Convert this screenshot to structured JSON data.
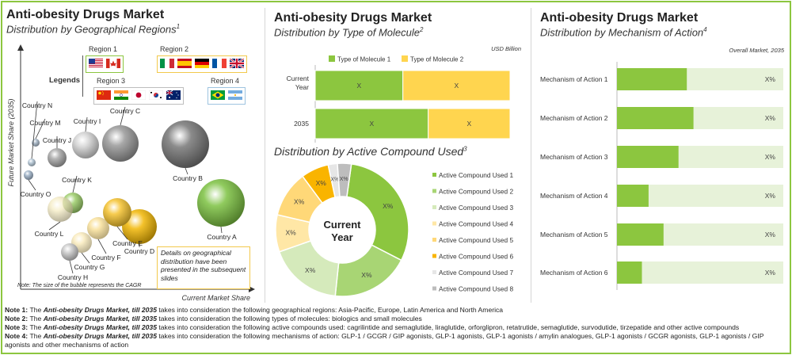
{
  "panel1": {
    "title": "Anti-obesity Drugs Market",
    "subtitle": "Distribution by Geographical Regions",
    "subtitle_sup": "1",
    "legend_label": "Legends",
    "regions": [
      {
        "label": "Region 1",
        "flags": [
          "us",
          "ca"
        ]
      },
      {
        "label": "Region 2",
        "flags": [
          "it",
          "es",
          "de",
          "fr",
          "uk"
        ]
      },
      {
        "label": "Region 3",
        "flags": [
          "cn",
          "in",
          "jp",
          "kr",
          "au"
        ]
      },
      {
        "label": "Region 4",
        "flags": [
          "br",
          "ar"
        ]
      }
    ],
    "details_note": "Details on geographical distribution have been presented in the subsequent slides",
    "bubble_note": "Note: The size of the bubble represents the CAGR"
  },
  "panel2": {
    "title": "Anti-obesity Drugs Market",
    "subtitle": "Distribution by Type of Molecule",
    "subtitle_sup": "2",
    "unit": "USD Billion"
  },
  "panel3": {
    "subtitle": "Distribution by Active Compound Used",
    "subtitle_sup": "3",
    "center_label": [
      "Current",
      "Year"
    ]
  },
  "panel4": {
    "title": "Anti-obesity Drugs Market",
    "subtitle": "Distribution by Mechanism of Action",
    "subtitle_sup": "4",
    "caption": "Overall Market, 2035"
  },
  "chart_data": [
    {
      "type": "scatter",
      "xlabel": "Current Market Share",
      "ylabel": "Future Market Share  (2035)",
      "points": [
        {
          "name": "Country A",
          "color": "#7cc242",
          "region": 1
        },
        {
          "name": "Country B",
          "color": "#777777",
          "region": 1
        },
        {
          "name": "Country C",
          "color": "#999999",
          "region": 2
        },
        {
          "name": "Country D",
          "color": "#f2b705",
          "region": 2
        },
        {
          "name": "Country E",
          "color": "#f5c330",
          "region": 2
        },
        {
          "name": "Country F",
          "color": "#f7d77a",
          "region": 2
        },
        {
          "name": "Country G",
          "color": "#f8e5a8",
          "region": 2
        },
        {
          "name": "Country H",
          "color": "#c8c8c8",
          "region": 2
        },
        {
          "name": "Country I",
          "color": "#d4d4d4",
          "region": 3
        },
        {
          "name": "Country J",
          "color": "#a8a8a8",
          "region": 3
        },
        {
          "name": "Country K",
          "color": "#9ccc6a",
          "region": 3
        },
        {
          "name": "Country L",
          "color": "#f3e9b8",
          "region": 3
        },
        {
          "name": "Country M",
          "color": "#a6b6c6",
          "region": 3
        },
        {
          "name": "Country N",
          "color": "#b4c6d6",
          "region": 4
        },
        {
          "name": "Country O",
          "color": "#9fb3c8",
          "region": 4
        }
      ]
    },
    {
      "type": "bar",
      "orientation": "horizontal",
      "stacked": true,
      "normalized": true,
      "categories": [
        "Current Year",
        "2035"
      ],
      "series": [
        {
          "name": "Type of Molecule 1",
          "color": "#8cc63f",
          "values": [
            0.45,
            0.58
          ],
          "labels": [
            "X",
            "X"
          ]
        },
        {
          "name": "Type of Molecule 2",
          "color": "#ffd54f",
          "values": [
            0.55,
            0.42
          ],
          "labels": [
            "X",
            "X"
          ]
        }
      ],
      "legend": "top"
    },
    {
      "type": "pie",
      "donut": true,
      "center_text": "Current Year",
      "legend": "right",
      "slices": [
        {
          "name": "Active Compound Used 1",
          "value": 0.27,
          "label": "X%",
          "color": "#8cc63f"
        },
        {
          "name": "Active Compound Used 2",
          "value": 0.17,
          "label": "X%",
          "color": "#a8d574"
        },
        {
          "name": "Active Compound Used 3",
          "value": 0.16,
          "label": "X%",
          "color": "#d5eabb"
        },
        {
          "name": "Active Compound Used 4",
          "value": 0.08,
          "label": "X%",
          "color": "#ffe7a6"
        },
        {
          "name": "Active Compound Used 5",
          "value": 0.1,
          "label": "X%",
          "color": "#ffd878"
        },
        {
          "name": "Active Compound Used 6",
          "value": 0.06,
          "label": "X%",
          "color": "#f9b400"
        },
        {
          "name": "Active Compound Used 7",
          "value": 0.02,
          "label": "X%",
          "color": "#e6e6e6"
        },
        {
          "name": "Active Compound Used 8",
          "value": 0.03,
          "label": "X%",
          "color": "#bdbdbd"
        }
      ]
    },
    {
      "type": "bar",
      "orientation": "horizontal",
      "categories": [
        "Mechanism of Action 1",
        "Mechanism of Action 2",
        "Mechanism of Action 3",
        "Mechanism of Action 4",
        "Mechanism of Action 5",
        "Mechanism of Action 6"
      ],
      "values": [
        0.42,
        0.46,
        0.37,
        0.19,
        0.28,
        0.15
      ],
      "labels": [
        "X%",
        "X%",
        "X%",
        "X%",
        "X%",
        "X%"
      ],
      "bar_color": "#8cc63f",
      "track_color": "#e7f2d9"
    }
  ],
  "notes": [
    {
      "label": "Note 1:",
      "pre": "The",
      "bold": "Anti-obesity Drugs Market, till 2035",
      "text": "takes into consideration the following geographical regions: Asia-Pacific, Europe, Latin America and North America"
    },
    {
      "label": "Note 2:",
      "pre": "The",
      "bold": "Anti-obesity Drugs Market, till 2035",
      "text": "takes into consideration the following types of molecules: biologics and small molecules"
    },
    {
      "label": "Note 3:",
      "pre": "The",
      "bold": "Anti-obesity Drugs Market, till 2035",
      "text": "takes into consideration the following active compounds used: cagrilintide and semaglutide, liraglutide, orforglipron, retatrutide, semaglutide, survodutide, tirzepatide and other active compounds"
    },
    {
      "label": "Note 4:",
      "pre": "The",
      "bold": "Anti-obesity Drugs Market, till 2035",
      "text": "takes into consideration the following mechanisms of action: GLP-1 / GCGR / GIP agonists, GLP-1 agonists, GLP-1 agonists / amylin analogues, GLP-1 agonists / GCGR agonists, GLP-1 agonists / GIP agonists and other mechanisms of action"
    }
  ]
}
